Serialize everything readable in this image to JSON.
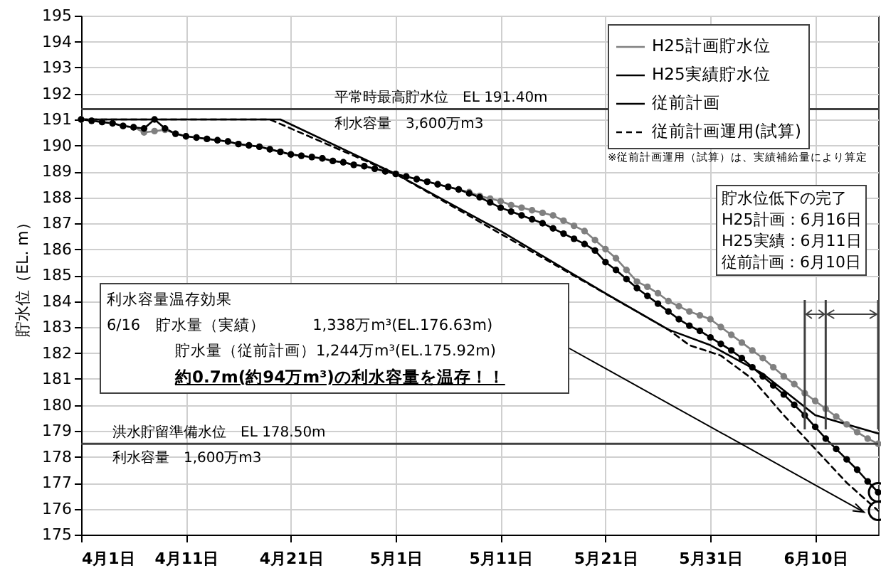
{
  "chart_data": {
    "type": "line",
    "ylabel": "貯水位（EL. m）",
    "x": [
      "--04-01",
      "--04-02",
      "--04-03",
      "--04-04",
      "--04-05",
      "--04-06",
      "--04-07",
      "--04-08",
      "--04-09",
      "--04-10",
      "--04-11",
      "--04-12",
      "--04-13",
      "--04-14",
      "--04-15",
      "--04-16",
      "--04-17",
      "--04-18",
      "--04-19",
      "--04-20",
      "--04-21",
      "--04-22",
      "--04-23",
      "--04-24",
      "--04-25",
      "--04-26",
      "--04-27",
      "--04-28",
      "--04-29",
      "--04-30",
      "--05-01",
      "--05-02",
      "--05-03",
      "--05-04",
      "--05-05",
      "--05-06",
      "--05-07",
      "--05-08",
      "--05-09",
      "--05-10",
      "--05-11",
      "--05-12",
      "--05-13",
      "--05-14",
      "--05-15",
      "--05-16",
      "--05-17",
      "--05-18",
      "--05-19",
      "--05-20",
      "--05-21",
      "--05-22",
      "--05-23",
      "--05-24",
      "--05-25",
      "--05-26",
      "--05-27",
      "--05-28",
      "--05-29",
      "--05-30",
      "--05-31",
      "--06-01",
      "--06-02",
      "--06-03",
      "--06-04",
      "--06-05",
      "--06-06",
      "--06-07",
      "--06-08",
      "--06-09",
      "--06-10",
      "--06-11",
      "--06-12",
      "--06-13",
      "--06-14",
      "--06-15",
      "--06-16"
    ],
    "series": [
      {
        "name": "H25計画貯水位",
        "color": "#808080",
        "marker": "circle",
        "line_style": "solid",
        "values": [
          191.0,
          190.95,
          190.9,
          190.85,
          190.75,
          190.7,
          190.5,
          190.55,
          190.6,
          190.45,
          190.35,
          190.3,
          190.25,
          190.2,
          190.15,
          190.05,
          190.0,
          189.95,
          189.85,
          189.75,
          189.65,
          189.6,
          189.55,
          189.5,
          189.4,
          189.35,
          189.25,
          189.2,
          189.1,
          189.0,
          188.9,
          188.8,
          188.7,
          188.6,
          188.5,
          188.4,
          188.3,
          188.2,
          188.05,
          187.95,
          187.85,
          187.7,
          187.6,
          187.5,
          187.4,
          187.3,
          187.1,
          186.9,
          186.7,
          186.35,
          186.0,
          185.65,
          185.2,
          184.75,
          184.55,
          184.3,
          184.0,
          183.8,
          183.6,
          183.45,
          183.3,
          183.0,
          182.7,
          182.4,
          182.1,
          181.8,
          181.45,
          181.1,
          180.8,
          180.45,
          180.15,
          179.85,
          179.55,
          179.25,
          178.95,
          178.7,
          178.5
        ]
      },
      {
        "name": "H25実績貯水位",
        "color": "#000000",
        "marker": "circle",
        "line_style": "solid",
        "values": [
          191.0,
          190.95,
          190.9,
          190.85,
          190.75,
          190.7,
          190.65,
          191.0,
          190.65,
          190.45,
          190.35,
          190.3,
          190.25,
          190.2,
          190.15,
          190.05,
          190.0,
          189.95,
          189.85,
          189.75,
          189.65,
          189.6,
          189.55,
          189.5,
          189.4,
          189.35,
          189.25,
          189.2,
          189.1,
          189.0,
          188.9,
          188.8,
          188.7,
          188.6,
          188.5,
          188.4,
          188.3,
          188.15,
          188.0,
          187.8,
          187.6,
          187.45,
          187.3,
          187.15,
          187.0,
          186.8,
          186.6,
          186.4,
          186.2,
          185.95,
          185.5,
          185.2,
          184.85,
          184.5,
          184.2,
          183.9,
          183.6,
          183.3,
          183.05,
          182.85,
          182.6,
          182.35,
          182.1,
          181.8,
          181.45,
          181.1,
          180.75,
          180.4,
          180.0,
          179.6,
          179.15,
          178.7,
          178.3,
          177.9,
          177.5,
          177.05,
          176.63
        ]
      },
      {
        "name": "従前計画",
        "color": "#000000",
        "marker": "none",
        "line_style": "solid",
        "x": [
          "--04-01",
          "--04-20",
          "--05-01",
          "--05-11",
          "--05-21",
          "--05-27",
          "--05-31",
          "--06-05",
          "--06-10",
          "--06-16"
        ],
        "values": [
          191.0,
          191.0,
          188.9,
          186.7,
          184.3,
          182.9,
          182.3,
          181.2,
          179.6,
          178.9
        ]
      },
      {
        "name": "従前計画運用(試算)",
        "color": "#000000",
        "marker": "none",
        "line_style": "dashed",
        "x": [
          "--04-01",
          "--04-19",
          "--05-01",
          "--05-27",
          "--05-29",
          "--06-01",
          "--06-04",
          "--06-07",
          "--06-10",
          "--06-13",
          "--06-16"
        ],
        "values": [
          191.0,
          191.0,
          188.9,
          182.9,
          182.3,
          181.9,
          181.0,
          179.6,
          178.3,
          177.0,
          175.92
        ]
      }
    ],
    "xlim": [
      "--04-01",
      "--06-16"
    ],
    "xticks": [
      {
        "value": "--04-01",
        "label": "4月1日"
      },
      {
        "value": "--04-11",
        "label": "4月11日"
      },
      {
        "value": "--04-21",
        "label": "4月21日"
      },
      {
        "value": "--05-01",
        "label": "5月1日"
      },
      {
        "value": "--05-11",
        "label": "5月11日"
      },
      {
        "value": "--05-21",
        "label": "5月21日"
      },
      {
        "value": "--05-31",
        "label": "5月31日"
      },
      {
        "value": "--06-10",
        "label": "6月10日"
      }
    ],
    "ylim": [
      175,
      195
    ],
    "yticks": [
      175,
      176,
      177,
      178,
      179,
      180,
      181,
      182,
      183,
      184,
      185,
      186,
      187,
      188,
      189,
      190,
      191,
      192,
      193,
      194,
      195
    ],
    "grid": true,
    "legend": "top right",
    "ref_lines": [
      {
        "axis": "y",
        "value": 191.4,
        "color": "#404040",
        "label": "平常時最高貯水位　EL 191.40m"
      },
      {
        "axis": "y",
        "value": 178.5,
        "color": "#404040",
        "label": "洪水貯留準備水位　EL 178.50m"
      }
    ],
    "annotations": [
      "利水容量　3,600万m3",
      "利水容量　1,600万m3",
      "※従前計画運用（試算）は、実績補給量により算定",
      "貯水位低下の完了",
      "H25計画：6月16日",
      "H25実績：6月11日",
      "従前計画：6月10日",
      "利水容量温存効果",
      "6/16　貯水量（実績）　　　1,338万m³(EL.176.63m)",
      "貯水量（従前計画）1,244万m³(EL.175.92m)",
      "約0.7m(約94万m³)の利水容量を温存！！"
    ]
  }
}
